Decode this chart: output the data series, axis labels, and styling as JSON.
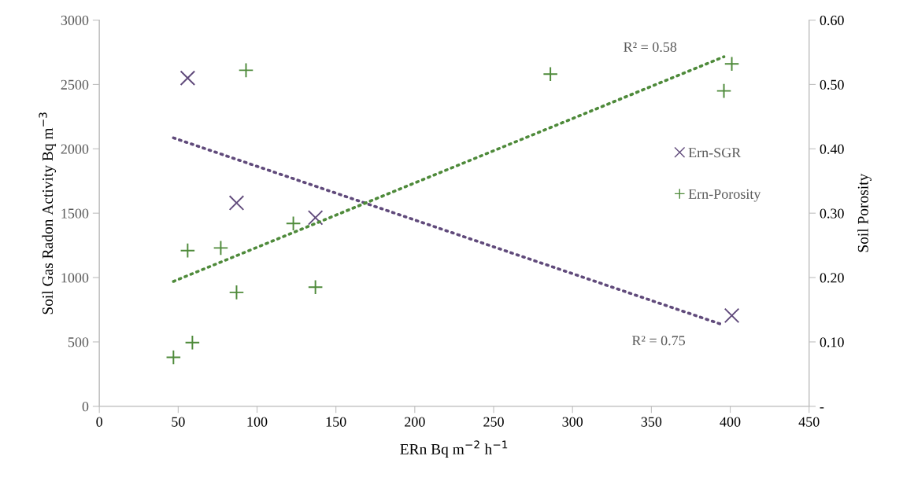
{
  "chart_data": {
    "type": "scatter",
    "xlabel": "ERn Bq m$^{−2}$ h$^{−1}$",
    "ylabel": "Soil Gas Radon Activity Bq m$^{−3}$",
    "y2label": "Soil Porosity",
    "xlim": [
      0,
      450
    ],
    "xticks": [
      0,
      50,
      100,
      150,
      200,
      250,
      300,
      350,
      400,
      450
    ],
    "ylim": [
      0,
      3000
    ],
    "yticks": [
      0,
      500,
      1000,
      1500,
      2000,
      2500,
      3000
    ],
    "y2lim": [
      0,
      0.6
    ],
    "y2ticks": [
      {
        "value": 0,
        "label": "-"
      },
      {
        "value": 0.1,
        "label": "0.10"
      },
      {
        "value": 0.2,
        "label": "0.20"
      },
      {
        "value": 0.3,
        "label": "0.30"
      },
      {
        "value": 0.4,
        "label": "0.40"
      },
      {
        "value": 0.5,
        "label": "0.50"
      },
      {
        "value": 0.6,
        "label": "0.60"
      }
    ],
    "grid": false,
    "legend": "right",
    "series": [
      {
        "name": "Ern-SGR",
        "marker": "cross",
        "color": "#604a7b",
        "x": [
          56,
          87,
          137,
          401
        ],
        "values": [
          2550,
          1580,
          1465,
          705
        ]
      },
      {
        "name": "Ern-Porosity",
        "marker": "plus",
        "axis": "y2",
        "color": "#4e8a3a",
        "x": [
          47,
          59,
          56,
          77,
          87,
          93,
          123,
          137,
          286,
          396,
          401
        ],
        "values": [
          0.076,
          0.099,
          0.242,
          0.246,
          0.177,
          0.522,
          0.284,
          0.185,
          0.516,
          0.49,
          0.532
        ]
      },
      {
        "type": "line",
        "line_style": "dotted",
        "color": "#604a7b",
        "x": [
          47,
          396
        ],
        "values": [
          2085,
          630
        ]
      },
      {
        "type": "line",
        "line_style": "dotted",
        "axis": "y2",
        "color": "#4e8a3a",
        "x": [
          47,
          396
        ],
        "values": [
          0.194,
          0.543
        ]
      }
    ],
    "annotations": [
      "R² = 0.58",
      "R² = 0.75"
    ]
  }
}
